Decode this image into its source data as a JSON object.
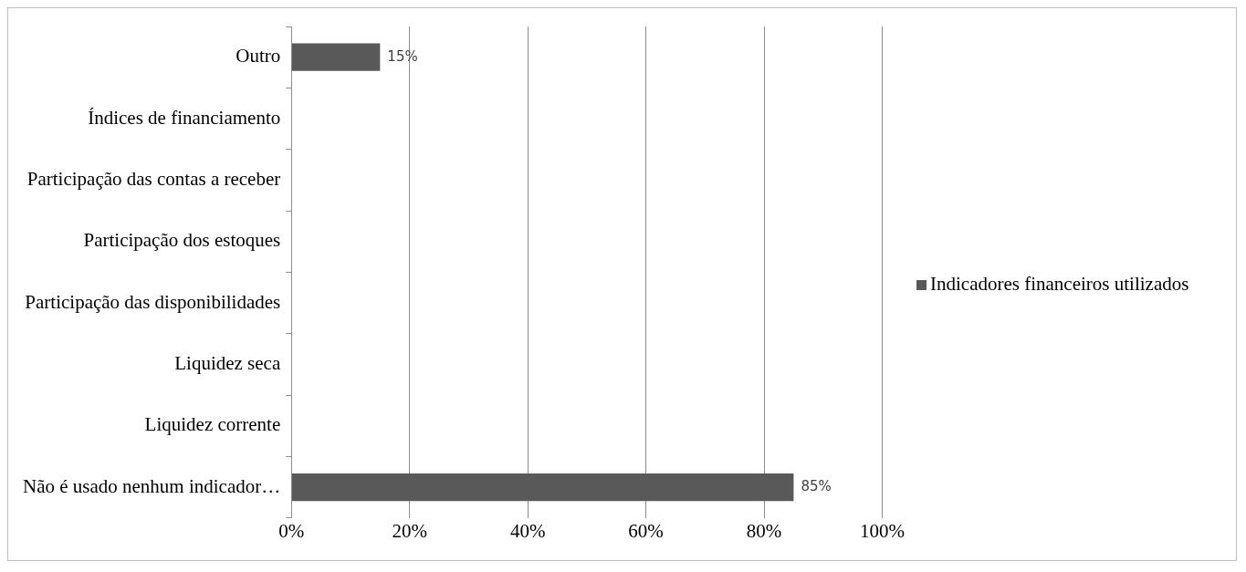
{
  "chart_data": {
    "type": "bar",
    "orientation": "horizontal",
    "categories": [
      "Outro",
      "Índices de financiamento",
      "Participação das contas a receber",
      "Participação dos estoques",
      "Participação das disponibilidades",
      "Liquidez seca",
      "Liquidez corrente",
      "Não é usado nenhum indicador…"
    ],
    "series": [
      {
        "name": "Indicadores financeiros utilizados",
        "color": "#595959",
        "values": [
          15,
          0,
          0,
          0,
          0,
          0,
          0,
          85
        ],
        "value_labels": [
          "15%",
          null,
          null,
          null,
          null,
          null,
          null,
          "85%"
        ]
      }
    ],
    "xlim": [
      0,
      100
    ],
    "xticks": [
      {
        "value": 0,
        "label": "0%"
      },
      {
        "value": 20,
        "label": "20%"
      },
      {
        "value": 40,
        "label": "40%"
      },
      {
        "value": 60,
        "label": "60%"
      },
      {
        "value": 80,
        "label": "80%"
      },
      {
        "value": 100,
        "label": "100%"
      }
    ],
    "grid": "x",
    "legend": "right"
  }
}
